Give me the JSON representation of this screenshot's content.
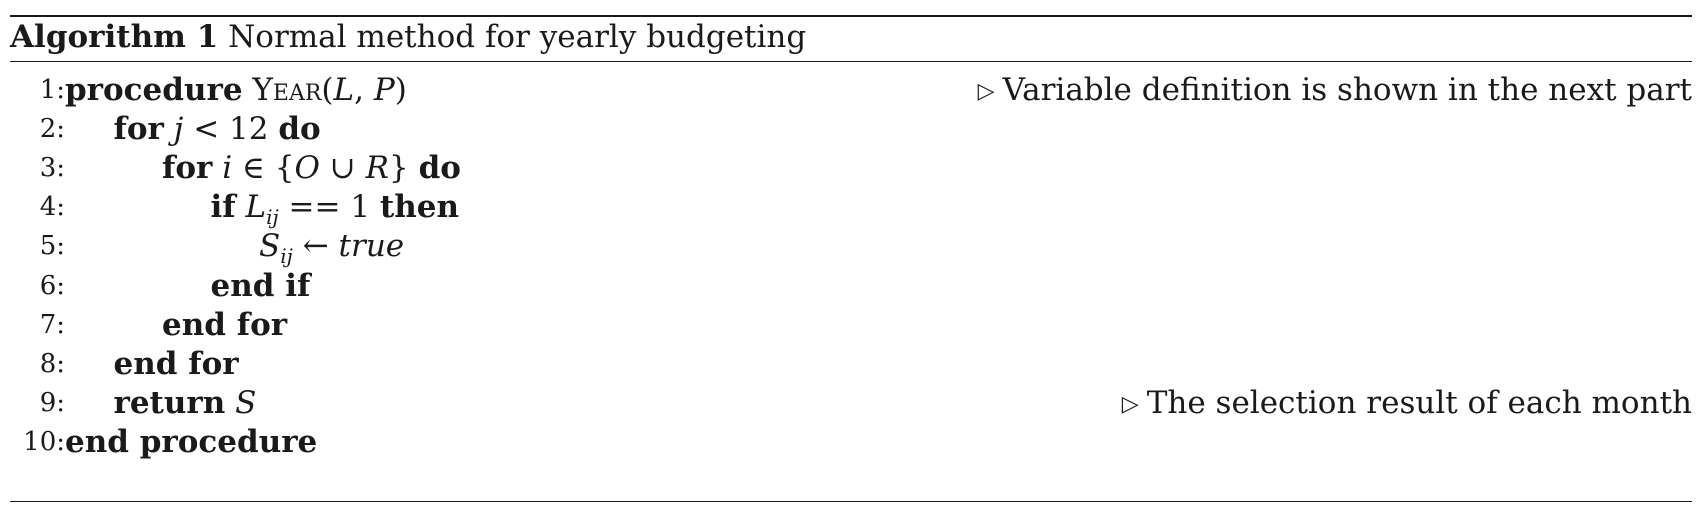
{
  "caption": {
    "label": "Algorithm 1",
    "title": "Normal method for yearly budgeting"
  },
  "lines": [
    {
      "num": "1:",
      "parts": [
        {
          "t": "procedure",
          "s": "kw"
        },
        {
          "t": " ",
          "s": ""
        },
        {
          "t": "Year",
          "s": "sc"
        },
        {
          "t": "(",
          "s": ""
        },
        {
          "t": "L",
          "s": "it"
        },
        {
          "t": ", ",
          "s": ""
        },
        {
          "t": "P",
          "s": "it"
        },
        {
          "t": ")",
          "s": ""
        }
      ],
      "comment": "Variable definition is shown in the next part"
    },
    {
      "num": "2:",
      "parts": [
        {
          "t": "for",
          "s": "kw"
        },
        {
          "t": " ",
          "s": ""
        },
        {
          "t": "j",
          "s": "it"
        },
        {
          "t": " < 12 ",
          "s": ""
        },
        {
          "t": "do",
          "s": "kw"
        }
      ],
      "comment": ""
    },
    {
      "num": "3:",
      "parts": [
        {
          "t": "for",
          "s": "kw"
        },
        {
          "t": " ",
          "s": ""
        },
        {
          "t": "i",
          "s": "it"
        },
        {
          "t": " ∈ {",
          "s": ""
        },
        {
          "t": "O",
          "s": "it"
        },
        {
          "t": " ∪ ",
          "s": ""
        },
        {
          "t": "R",
          "s": "it"
        },
        {
          "t": "} ",
          "s": ""
        },
        {
          "t": "do",
          "s": "kw"
        }
      ],
      "comment": ""
    },
    {
      "num": "4:",
      "parts": [
        {
          "t": "if",
          "s": "kw"
        },
        {
          "t": " ",
          "s": ""
        },
        {
          "t": "L",
          "s": "it"
        },
        {
          "t": "ij",
          "s": "sub"
        },
        {
          "t": " == 1 ",
          "s": ""
        },
        {
          "t": "then",
          "s": "kw"
        }
      ],
      "comment": ""
    },
    {
      "num": "5:",
      "parts": [
        {
          "t": "S",
          "s": "it"
        },
        {
          "t": "ij",
          "s": "sub"
        },
        {
          "t": " ← ",
          "s": ""
        },
        {
          "t": "true",
          "s": "it"
        }
      ],
      "comment": ""
    },
    {
      "num": "6:",
      "parts": [
        {
          "t": "end if",
          "s": "kw"
        }
      ],
      "comment": ""
    },
    {
      "num": "7:",
      "parts": [
        {
          "t": "end for",
          "s": "kw"
        }
      ],
      "comment": ""
    },
    {
      "num": "8:",
      "parts": [
        {
          "t": "end for",
          "s": "kw"
        }
      ],
      "comment": ""
    },
    {
      "num": "9:",
      "parts": [
        {
          "t": "return",
          "s": "kw"
        },
        {
          "t": " ",
          "s": ""
        },
        {
          "t": "S",
          "s": "it"
        }
      ],
      "comment": "The selection result of each month"
    },
    {
      "num": "10:",
      "parts": [
        {
          "t": "end procedure",
          "s": "kw"
        }
      ],
      "comment": ""
    }
  ],
  "comment_marker": "▷"
}
